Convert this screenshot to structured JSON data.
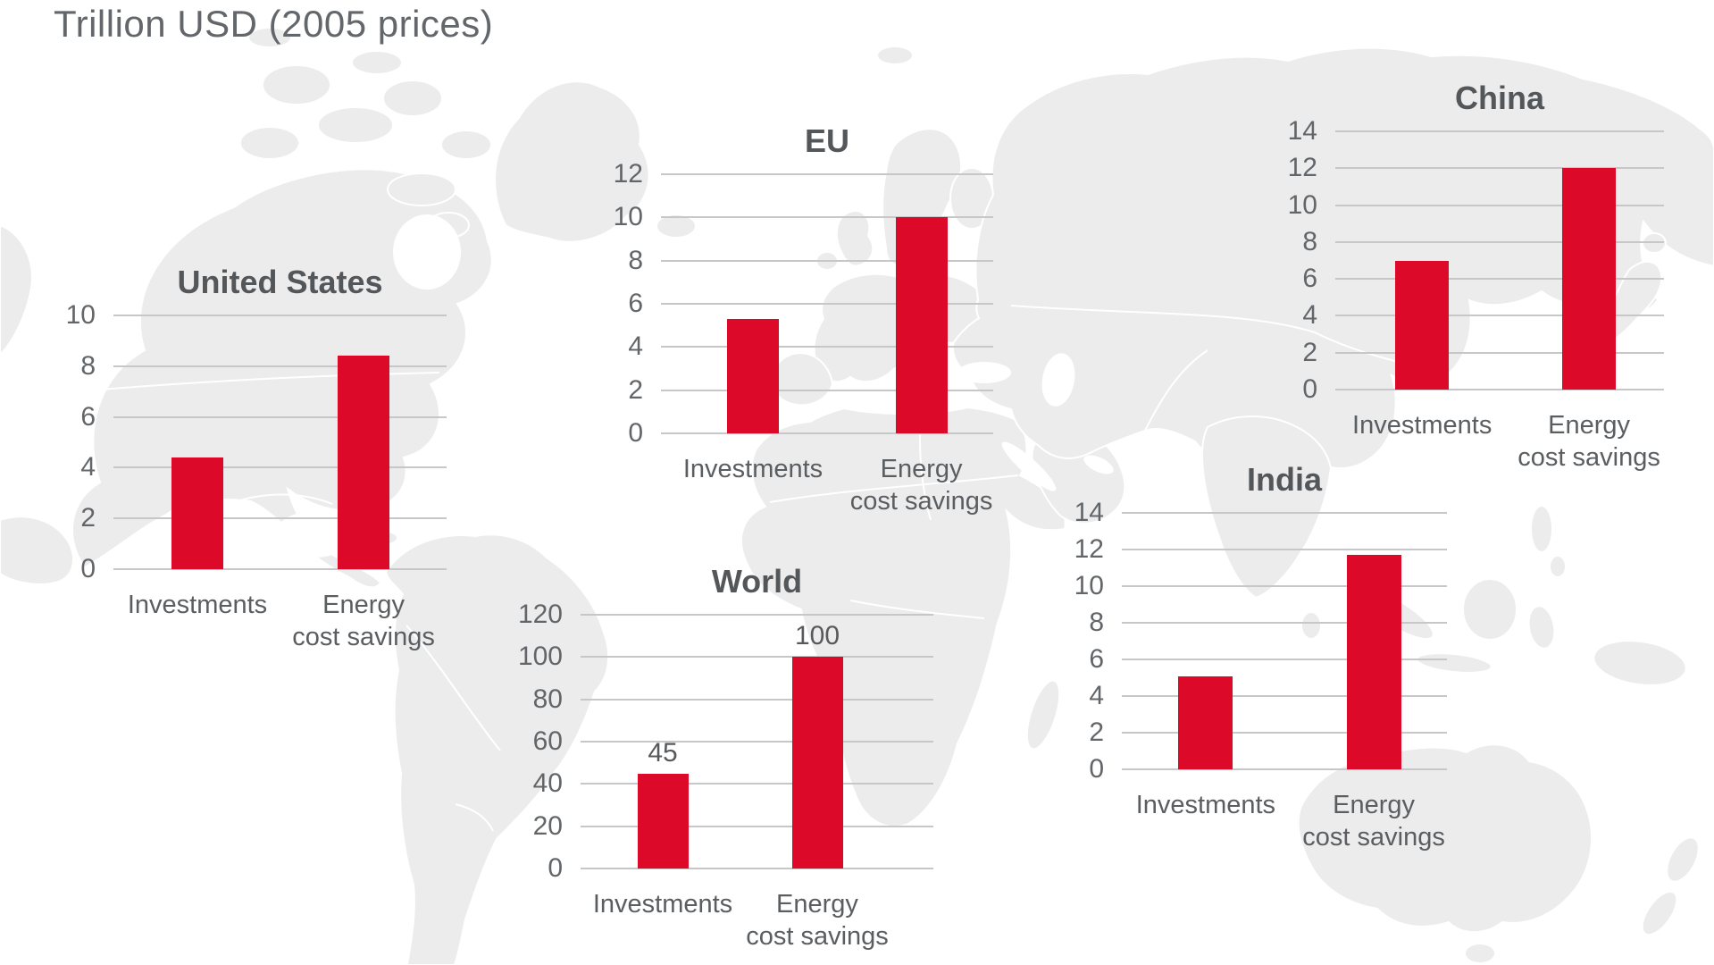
{
  "page_title": "Trillion USD (2005 prices)",
  "colors": {
    "bar_red": "#dc0a28",
    "map_land": "#ececed",
    "map_border": "#ffffff",
    "gridline": "#c7c7c9",
    "chart_title_text": "#54575a",
    "axis_text": "#636669"
  },
  "background": {
    "description": "light-gray world map silhouette"
  },
  "chart_data": [
    {
      "type": "bar",
      "region": "United States",
      "categories": [
        "Investments",
        "Energy\ncost savings"
      ],
      "values": [
        4.4,
        8.4
      ],
      "yticks": [
        0,
        2,
        4,
        6,
        8,
        10
      ],
      "ylim": [
        0,
        10
      ],
      "ylabel": "",
      "grid": "on",
      "legend": "none",
      "data_labels": []
    },
    {
      "type": "bar",
      "region": "EU",
      "categories": [
        "Investments",
        "Energy\ncost savings"
      ],
      "values": [
        5.3,
        10
      ],
      "yticks": [
        0,
        2,
        4,
        6,
        8,
        10,
        12
      ],
      "ylim": [
        0,
        12
      ],
      "ylabel": "",
      "grid": "on",
      "legend": "none",
      "data_labels": []
    },
    {
      "type": "bar",
      "region": "China",
      "categories": [
        "Investments",
        "Energy\ncost savings"
      ],
      "values": [
        7,
        12
      ],
      "yticks": [
        0,
        2,
        4,
        6,
        8,
        10,
        12,
        14
      ],
      "ylim": [
        0,
        14
      ],
      "ylabel": "",
      "grid": "on",
      "legend": "none",
      "data_labels": []
    },
    {
      "type": "bar",
      "region": "India",
      "categories": [
        "Investments",
        "Energy\ncost savings"
      ],
      "values": [
        5.1,
        11.7
      ],
      "yticks": [
        0,
        2,
        4,
        6,
        8,
        10,
        12,
        14
      ],
      "ylim": [
        0,
        14
      ],
      "ylabel": "",
      "grid": "on",
      "legend": "none",
      "data_labels": []
    },
    {
      "type": "bar",
      "region": "World",
      "categories": [
        "Investments",
        "Energy\ncost savings"
      ],
      "values": [
        45,
        100
      ],
      "yticks": [
        0,
        20,
        40,
        60,
        80,
        100,
        120
      ],
      "ylim": [
        0,
        120
      ],
      "ylabel": "",
      "grid": "on",
      "legend": "none",
      "data_labels": [
        "45",
        "100"
      ]
    }
  ]
}
